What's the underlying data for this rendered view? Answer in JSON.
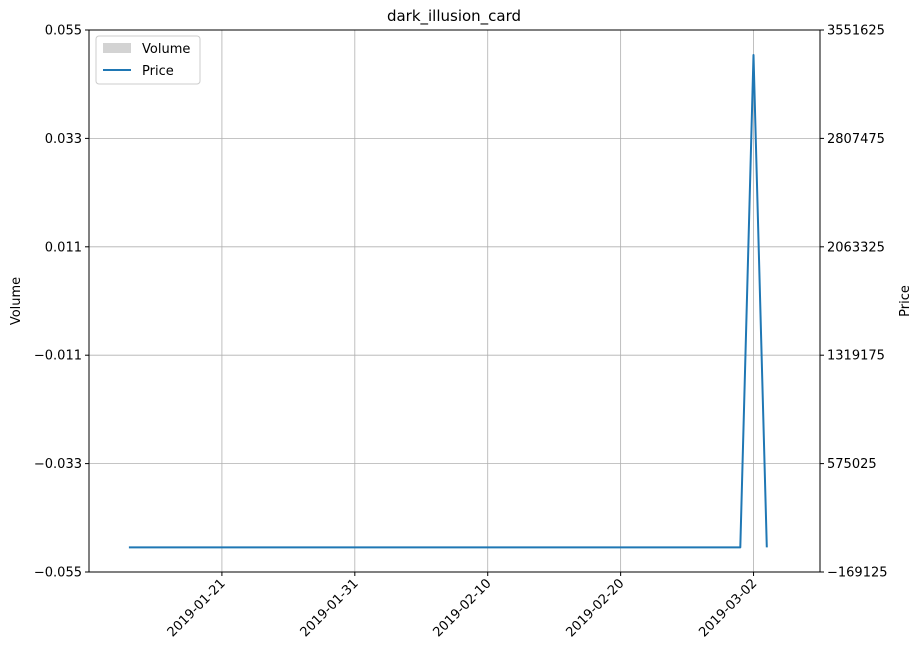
{
  "chart_data": {
    "type": "line",
    "title": "dark_illusion_card",
    "left_axis": {
      "label": "Volume",
      "ylim": [
        -0.055,
        0.055
      ],
      "ticks": [
        "0.055",
        "0.033",
        "0.011",
        "−0.011",
        "−0.033",
        "−0.055"
      ],
      "tick_values": [
        0.055,
        0.033,
        0.011,
        -0.011,
        -0.033,
        -0.055
      ]
    },
    "right_axis": {
      "label": "Price",
      "ylim": [
        -169125,
        3551625
      ],
      "ticks": [
        "3551625",
        "2807475",
        "2063325",
        "1319175",
        "575025",
        "−169125"
      ],
      "tick_values": [
        3551625,
        2807475,
        2063325,
        1319175,
        575025,
        -169125
      ]
    },
    "x_axis": {
      "type": "date",
      "xlim": [
        "2019-01-11",
        "2019-03-07"
      ],
      "tick_labels": [
        "2019-01-21",
        "2019-01-31",
        "2019-02-10",
        "2019-02-20",
        "2019-03-02"
      ]
    },
    "grid": true,
    "legend": {
      "placement": "top-left",
      "entries": [
        "Volume",
        "Price"
      ]
    },
    "series": [
      {
        "name": "Volume",
        "kind": "bar",
        "axis": "left",
        "x": [],
        "values": [],
        "color": "#d3d3d3"
      },
      {
        "name": "Price",
        "kind": "line",
        "axis": "right",
        "color": "#1f77b4",
        "x": [
          "2019-01-14",
          "2019-03-01",
          "2019-03-02",
          "2019-03-03"
        ],
        "values": [
          0,
          0,
          3380000,
          0
        ]
      }
    ]
  }
}
